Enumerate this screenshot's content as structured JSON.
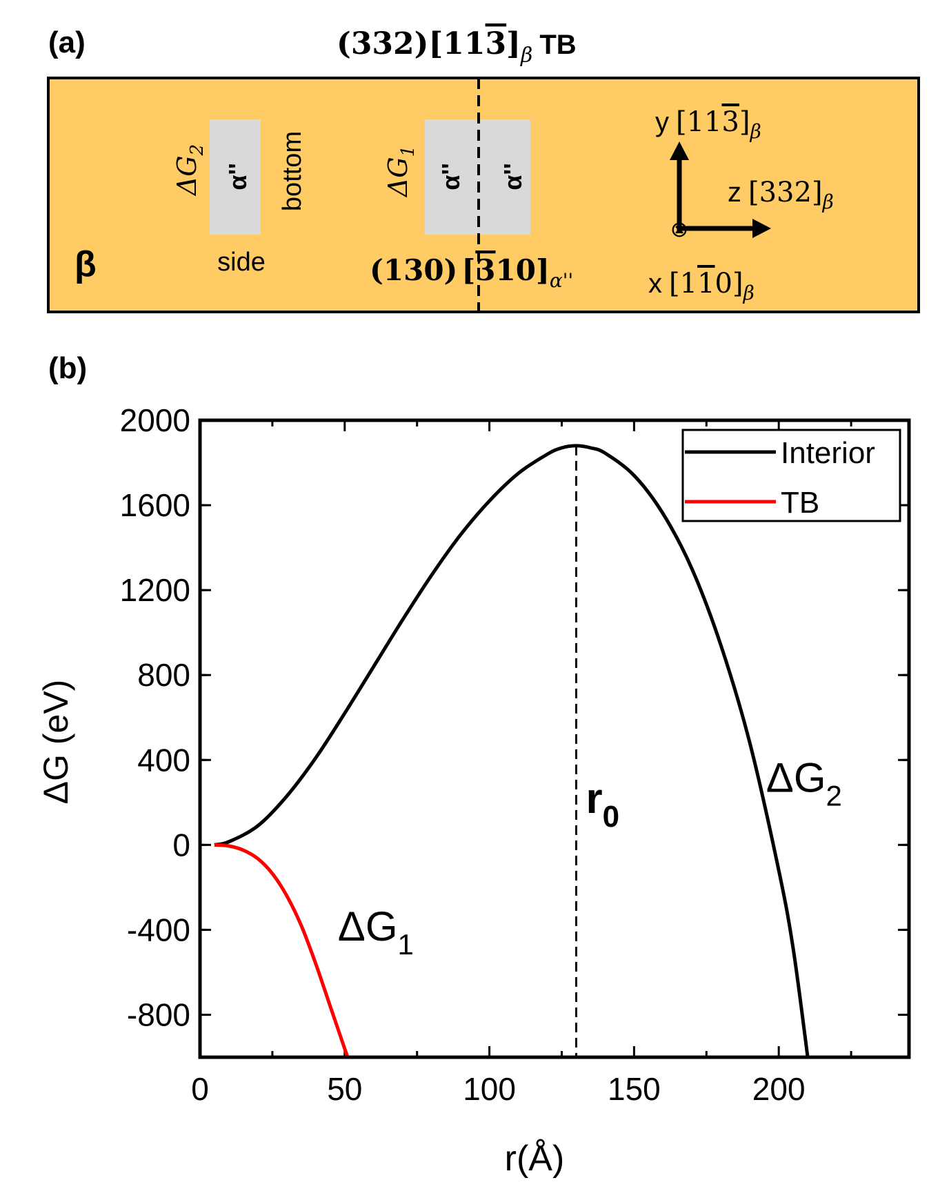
{
  "panel_a": {
    "label": "(a)",
    "title_plane": "(332)",
    "title_dir_pre": "[11",
    "title_dir_bar": "3",
    "title_dir_post": "]",
    "title_sub": "β",
    "title_tb": "TB",
    "matrix_symbol": "β",
    "dg2_main": "ΔG",
    "dg2_sub": "2",
    "dg1_main": "ΔG",
    "dg1_sub": "1",
    "alpha_label": "α''",
    "bottom_label": "bottom",
    "side_label": "side",
    "habit_plane": "(130)",
    "habit_dir_pre": "[",
    "habit_dir_bar": "3",
    "habit_dir_post": "10]",
    "habit_sub": "α''",
    "axis_y_name": "y",
    "axis_y_pre": "[11",
    "axis_y_bar": "3",
    "axis_y_post": "]",
    "axis_z_name": "z",
    "axis_z_dir": "[332]",
    "axis_x_name": "x",
    "axis_x_pre": "[1",
    "axis_x_bar": "1",
    "axis_x_post": "0]",
    "axis_sub": "β",
    "x_into_page_symbol": "⊗",
    "colors": {
      "matrix": "#fecb65",
      "precipitate": "#d9d9d9"
    }
  },
  "chart_data": {
    "type": "line",
    "panel_label": "(b)",
    "xlabel": "r(Å)",
    "ylabel": "ΔG (eV)",
    "xlim": [
      0,
      245
    ],
    "ylim": [
      -1000,
      2000
    ],
    "xticks": [
      0,
      50,
      100,
      150,
      200
    ],
    "yticks": [
      -800,
      -400,
      0,
      400,
      800,
      1200,
      1600,
      2000
    ],
    "series": [
      {
        "name": "Interior",
        "color": "#000000",
        "x": [
          5,
          10,
          20,
          30,
          40,
          50,
          60,
          70,
          80,
          90,
          100,
          110,
          120,
          125,
          130,
          135,
          140,
          150,
          160,
          170,
          180,
          190,
          200,
          205,
          210
        ],
        "y": [
          0,
          15,
          90,
          230,
          410,
          620,
          840,
          1060,
          1270,
          1460,
          1620,
          1750,
          1840,
          1870,
          1880,
          1870,
          1845,
          1740,
          1560,
          1300,
          940,
          480,
          -120,
          -490,
          -1000
        ]
      },
      {
        "name": "TB",
        "color": "#ff0000",
        "x": [
          5,
          10,
          15,
          20,
          25,
          30,
          35,
          40,
          45,
          50,
          51
        ],
        "y": [
          0,
          -5,
          -25,
          -65,
          -135,
          -240,
          -380,
          -560,
          -760,
          -960,
          -1000
        ]
      }
    ],
    "vline": {
      "x": 130,
      "label_main": "r",
      "label_sub": "0"
    },
    "annotations": [
      {
        "main": "ΔG",
        "sub": "1",
        "x": 50,
        "y": -450
      },
      {
        "main": "ΔG",
        "sub": "2",
        "x": 198,
        "y": 250
      }
    ],
    "legend": {
      "position": "top-right",
      "entries": [
        "Interior",
        "TB"
      ]
    }
  }
}
